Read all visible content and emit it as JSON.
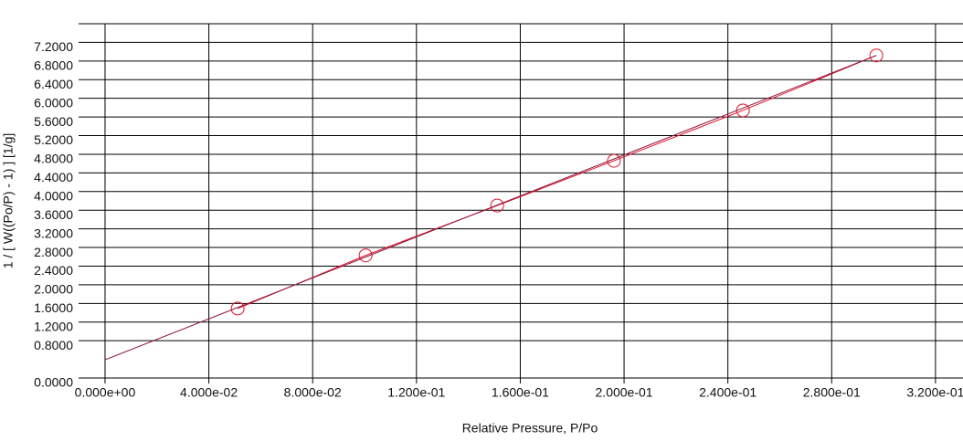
{
  "chart_data": {
    "type": "scatter",
    "x_label": "Relative Pressure, P/Po",
    "y_label": "1 / [ W((Po/P) - 1) ] [1/g]",
    "xlim": [
      -0.0102,
      0.3306
    ],
    "ylim": [
      0,
      7.6
    ],
    "xticks": [
      {
        "value": 0,
        "label": "0.000e+00"
      },
      {
        "value": 0.04,
        "label": "4.000e-02"
      },
      {
        "value": 0.08,
        "label": "8.000e-02"
      },
      {
        "value": 0.12,
        "label": "1.200e-01"
      },
      {
        "value": 0.16,
        "label": "1.600e-01"
      },
      {
        "value": 0.2,
        "label": "2.000e-01"
      },
      {
        "value": 0.24,
        "label": "2.400e-01"
      },
      {
        "value": 0.28,
        "label": "2.800e-01"
      },
      {
        "value": 0.32,
        "label": "3.200e-01"
      }
    ],
    "yticks": [
      {
        "value": 0,
        "label": "0.0000"
      },
      {
        "value": 0.8,
        "label": "0.8000"
      },
      {
        "value": 1.2,
        "label": "1.2000"
      },
      {
        "value": 1.6,
        "label": "1.6000"
      },
      {
        "value": 2.0,
        "label": "2.0000"
      },
      {
        "value": 2.4,
        "label": "2.4000"
      },
      {
        "value": 2.8,
        "label": "2.8000"
      },
      {
        "value": 3.2,
        "label": "3.2000"
      },
      {
        "value": 3.6,
        "label": "3.6000"
      },
      {
        "value": 4.0,
        "label": "4.0000"
      },
      {
        "value": 4.4,
        "label": "4.4000"
      },
      {
        "value": 4.8,
        "label": "4.8000"
      },
      {
        "value": 5.2,
        "label": "5.2000"
      },
      {
        "value": 5.6,
        "label": "5.6000"
      },
      {
        "value": 6.0,
        "label": "6.0000"
      },
      {
        "value": 6.4,
        "label": "6.4000"
      },
      {
        "value": 6.8,
        "label": "6.8000"
      },
      {
        "value": 7.2,
        "label": "7.2000"
      }
    ],
    "grid": true,
    "series": [
      {
        "color": "#e3122d",
        "x": [
          0.0511,
          0.1004,
          0.1511,
          0.1961,
          0.2458,
          0.2972
        ],
        "values": [
          1.49,
          2.63,
          3.7,
          4.66,
          5.74,
          6.92
        ],
        "marker": "circle",
        "line": true
      },
      {
        "color": "#8b1538",
        "x": [
          0,
          0.2972
        ],
        "values": [
          0.39,
          6.92
        ],
        "marker": "none",
        "line": true
      }
    ]
  }
}
